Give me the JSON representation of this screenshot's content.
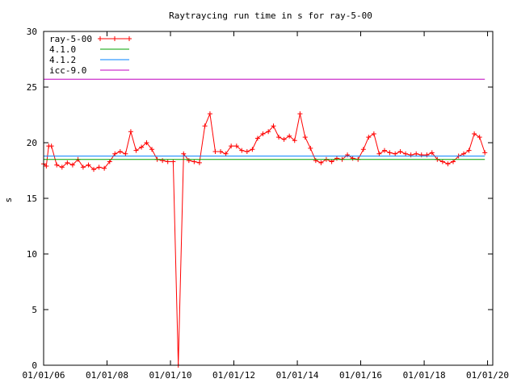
{
  "chart_data": {
    "type": "line",
    "title": "Raytraycing run time in s for ray-5-00",
    "xlabel": "",
    "ylabel": "s",
    "xlim": [
      "2006-01-01",
      "2020-03-01"
    ],
    "ylim": [
      0,
      30
    ],
    "y_ticks": [
      0,
      5,
      10,
      15,
      20,
      25,
      30
    ],
    "x_ticks": [
      "01/01/06",
      "01/01/08",
      "01/01/10",
      "01/01/12",
      "01/01/14",
      "01/01/16",
      "01/01/18",
      "01/01/20"
    ],
    "x_tick_dates": [
      "2006-01-01",
      "2008-01-01",
      "2010-01-01",
      "2012-01-01",
      "2014-01-01",
      "2016-01-01",
      "2018-01-01",
      "2020-01-01"
    ],
    "grid": false,
    "legend_position": "top-left",
    "series": [
      {
        "name": "ray-5-00",
        "color": "#ff0000",
        "marker": "plus",
        "x": [
          "2006-01-01",
          "2006-02-01",
          "2006-03-01",
          "2006-04-01",
          "2006-06-01",
          "2006-08-01",
          "2006-10-01",
          "2006-12-01",
          "2007-02-01",
          "2007-04-01",
          "2007-06-01",
          "2007-08-01",
          "2007-10-01",
          "2007-12-01",
          "2008-02-01",
          "2008-04-01",
          "2008-06-01",
          "2008-08-01",
          "2008-10-01",
          "2008-12-01",
          "2009-02-01",
          "2009-04-01",
          "2009-06-01",
          "2009-08-01",
          "2009-10-01",
          "2009-12-01",
          "2010-02-01",
          "2010-04-01",
          "2010-06-01",
          "2010-08-01",
          "2010-10-01",
          "2010-12-01",
          "2011-02-01",
          "2011-04-01",
          "2011-06-01",
          "2011-08-01",
          "2011-10-01",
          "2011-12-01",
          "2012-02-01",
          "2012-04-01",
          "2012-06-01",
          "2012-08-01",
          "2012-10-01",
          "2012-12-01",
          "2013-02-01",
          "2013-04-01",
          "2013-06-01",
          "2013-08-01",
          "2013-10-01",
          "2013-12-01",
          "2014-02-01",
          "2014-04-01",
          "2014-06-01",
          "2014-08-01",
          "2014-10-01",
          "2014-12-01",
          "2015-02-01",
          "2015-04-01",
          "2015-06-01",
          "2015-08-01",
          "2015-10-01",
          "2015-12-01",
          "2016-02-01",
          "2016-04-01",
          "2016-06-01",
          "2016-08-01",
          "2016-10-01",
          "2016-12-01",
          "2017-02-01",
          "2017-04-01",
          "2017-06-01",
          "2017-08-01",
          "2017-10-01",
          "2017-12-01",
          "2018-02-01",
          "2018-04-01",
          "2018-06-01",
          "2018-08-01",
          "2018-10-01",
          "2018-12-01",
          "2019-02-01",
          "2019-04-01",
          "2019-06-01",
          "2019-08-01",
          "2019-10-01",
          "2019-12-01"
        ],
        "y": [
          18.1,
          17.9,
          19.7,
          19.7,
          18.0,
          17.8,
          18.2,
          18.0,
          18.5,
          17.8,
          18.0,
          17.6,
          17.8,
          17.7,
          18.3,
          19.0,
          19.2,
          19.0,
          21.0,
          19.3,
          19.6,
          20.0,
          19.4,
          18.5,
          18.4,
          18.3,
          18.3,
          0.0,
          19.0,
          18.4,
          18.3,
          18.2,
          21.5,
          22.6,
          19.2,
          19.2,
          19.0,
          19.7,
          19.7,
          19.3,
          19.2,
          19.4,
          20.4,
          20.8,
          21.0,
          21.5,
          20.5,
          20.3,
          20.6,
          20.2,
          22.6,
          20.5,
          19.5,
          18.4,
          18.2,
          18.5,
          18.3,
          18.6,
          18.5,
          18.9,
          18.6,
          18.5,
          19.4,
          20.5,
          20.8,
          19.0,
          19.3,
          19.1,
          19.0,
          19.2,
          19.0,
          18.9,
          19.0,
          18.9,
          18.9,
          19.1,
          18.5,
          18.3,
          18.1,
          18.3,
          18.8,
          19.0,
          19.3,
          20.8,
          20.5,
          19.1
        ]
      },
      {
        "name": "4.1.0",
        "color": "#00a000",
        "x": [
          "2006-01-01",
          "2019-12-01"
        ],
        "y": [
          18.5,
          18.5
        ]
      },
      {
        "name": "4.1.2",
        "color": "#0080ff",
        "x": [
          "2006-01-01",
          "2019-12-01"
        ],
        "y": [
          18.8,
          18.8
        ]
      },
      {
        "name": "icc-9.0",
        "color": "#c000c0",
        "x": [
          "2006-01-01",
          "2019-12-01"
        ],
        "y": [
          25.7,
          25.7
        ]
      }
    ]
  }
}
